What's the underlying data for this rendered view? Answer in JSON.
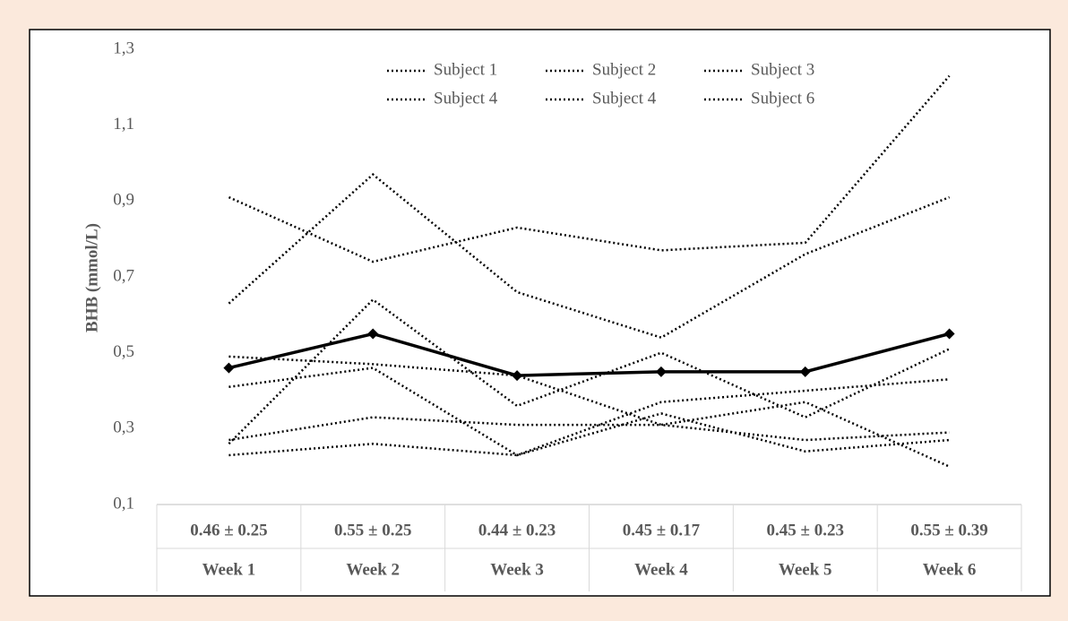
{
  "chart_data": {
    "type": "line",
    "y_label": "BHB (mmol/L)",
    "categories": [
      "Week 1",
      "Week 2",
      "Week 3",
      "Week 4",
      "Week 5",
      "Week 6"
    ],
    "summary_labels": [
      "0.46 ± 0.25",
      "0.55 ± 0.25",
      "0.44 ± 0.23",
      "0.45 ± 0.17",
      "0.45 ± 0.23",
      "0.55 ± 0.39"
    ],
    "series": [
      {
        "name": "Subject 1",
        "color": "#000000",
        "style": "dotted",
        "values": [
          0.91,
          0.74,
          0.83,
          0.77,
          0.79,
          1.23
        ]
      },
      {
        "name": "Subject 2",
        "color": "#000000",
        "style": "dotted",
        "values": [
          0.63,
          0.97,
          0.66,
          0.54,
          0.76,
          0.91
        ]
      },
      {
        "name": "Subject 3",
        "color": "#000000",
        "style": "dotted",
        "values": [
          0.49,
          0.47,
          0.44,
          0.31,
          0.27,
          0.29
        ]
      },
      {
        "name": "Subject 4",
        "color": "#000000",
        "style": "dotted",
        "values": [
          0.41,
          0.46,
          0.23,
          0.37,
          0.4,
          0.43
        ]
      },
      {
        "name": "Subject 4",
        "color": "#000000",
        "style": "dotted",
        "values": [
          0.27,
          0.33,
          0.31,
          0.31,
          0.37,
          0.2
        ]
      },
      {
        "name": "Subject 6",
        "color": "#000000",
        "style": "dotted",
        "values": [
          0.26,
          0.64,
          0.36,
          0.5,
          0.33,
          0.51
        ]
      },
      {
        "color": "#000000",
        "style": "dotted",
        "values": [
          0.23,
          0.26,
          0.23,
          0.34,
          0.24,
          0.27
        ]
      },
      {
        "color": "#000000",
        "style": "solid",
        "marker": "diamond",
        "values": [
          0.46,
          0.55,
          0.44,
          0.45,
          0.45,
          0.55
        ]
      }
    ],
    "ylim": [
      0.1,
      1.3
    ],
    "yticks": [
      {
        "value": 0.1,
        "label": "0,1"
      },
      {
        "value": 0.3,
        "label": "0,3"
      },
      {
        "value": 0.5,
        "label": "0,5"
      },
      {
        "value": 0.7,
        "label": "0,7"
      },
      {
        "value": 0.9,
        "label": "0,9"
      },
      {
        "value": 1.1,
        "label": "1,1"
      },
      {
        "value": 1.3,
        "label": "1,3"
      }
    ],
    "grid": false
  }
}
